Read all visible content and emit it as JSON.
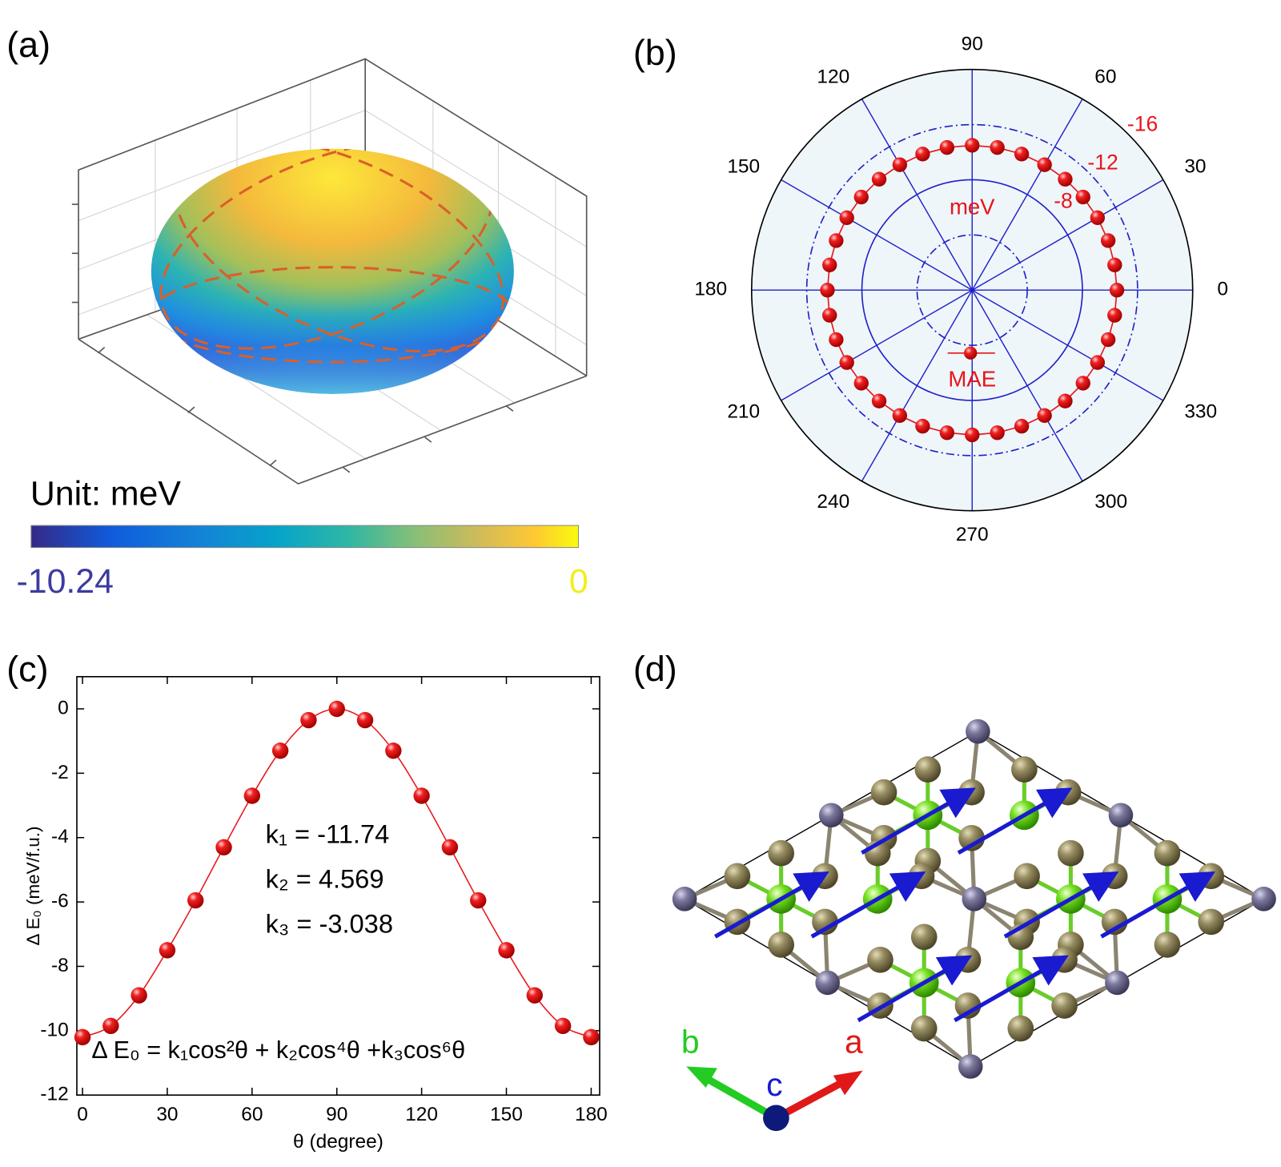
{
  "panel_labels": [
    "(a)",
    "(b)",
    "(c)",
    "(d)"
  ],
  "panel_a": {
    "colorbar": {
      "title": "Unit: meV",
      "min": -10.24,
      "max": 0
    }
  },
  "chart_data": [
    {
      "type": "polar",
      "theta": [
        0,
        10,
        20,
        30,
        40,
        50,
        60,
        70,
        80,
        90,
        100,
        110,
        120,
        130,
        140,
        150,
        160,
        170,
        180,
        190,
        200,
        210,
        220,
        230,
        240,
        250,
        260,
        270,
        280,
        290,
        300,
        310,
        320,
        330,
        340,
        350
      ],
      "series": [
        {
          "name": "MAE",
          "color": "#e8141b",
          "values": [
            -10.5,
            -10.5,
            -10.5,
            -10.5,
            -10.5,
            -10.5,
            -10.5,
            -10.5,
            -10.5,
            -10.5,
            -10.5,
            -10.5,
            -10.5,
            -10.5,
            -10.5,
            -10.5,
            -10.5,
            -10.5,
            -10.5,
            -10.5,
            -10.5,
            -10.5,
            -10.5,
            -10.5,
            -10.5,
            -10.5,
            -10.5,
            -10.5,
            -10.5,
            -10.5,
            -10.5,
            -10.5,
            -10.5,
            -10.5,
            -10.5,
            -10.5
          ]
        }
      ],
      "rlim": [
        0,
        -16
      ],
      "rticks": [
        {
          "value": -4,
          "label": null
        },
        -8,
        -12,
        -16
      ],
      "thetaticks": [
        0,
        30,
        60,
        90,
        120,
        150,
        180,
        210,
        240,
        270,
        300,
        330
      ],
      "annotations": [
        "meV"
      ]
    },
    {
      "type": "line",
      "x": [
        0,
        10,
        20,
        30,
        40,
        50,
        60,
        70,
        80,
        90,
        100,
        110,
        120,
        130,
        140,
        150,
        160,
        170,
        180
      ],
      "series": [
        {
          "color": "#e8141b",
          "values": [
            -10.2,
            -9.85,
            -8.9,
            -7.5,
            -5.95,
            -4.3,
            -2.7,
            -1.3,
            -0.35,
            0,
            -0.35,
            -1.3,
            -2.7,
            -4.3,
            -5.95,
            -7.5,
            -8.9,
            -9.85,
            -10.2
          ]
        }
      ],
      "xlim": [
        -2,
        183
      ],
      "ylim": [
        -12,
        1
      ],
      "xticks": [
        0,
        30,
        60,
        90,
        120,
        150,
        180
      ],
      "yticks": [
        0,
        -2,
        -4,
        -6,
        -8,
        -10,
        -12
      ],
      "xlabel": "θ (degree)",
      "ylabel": "Δ E₀ (meV/f.u.)",
      "annotations": [
        "k₁ = -11.74",
        "k₂ = 4.569",
        "k₃ = -3.038",
        "Δ E₀ = k₁cos²θ + k₂cos⁴θ +k₃cos⁶θ"
      ]
    }
  ],
  "panel_d": {
    "axes": [
      "a",
      "b",
      "c"
    ]
  }
}
